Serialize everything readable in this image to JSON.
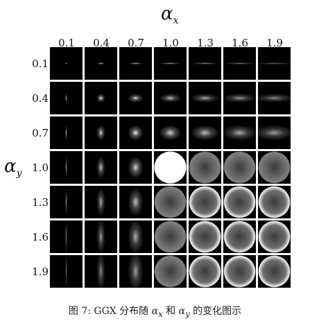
{
  "figure": {
    "x_axis_symbol": "α",
    "x_axis_subscript": "x",
    "y_axis_symbol": "α",
    "y_axis_subscript": "y",
    "column_values": [
      "0.1",
      "0.4",
      "0.7",
      "1.0",
      "1.3",
      "1.6",
      "1.9"
    ],
    "row_values": [
      "0.1",
      "0.4",
      "0.7",
      "1.0",
      "1.3",
      "1.6",
      "1.9"
    ]
  },
  "caption": {
    "prefix": "图 7: GGX 分布随",
    "ax_symbol": "α",
    "ax_sub": "x",
    "middle": "和",
    "ay_symbol": "α",
    "ay_sub": "y",
    "suffix": "的变化图示"
  },
  "colors": {
    "background": "#ffffff",
    "cell_background": "#000000",
    "highlight": "#ffffff"
  }
}
